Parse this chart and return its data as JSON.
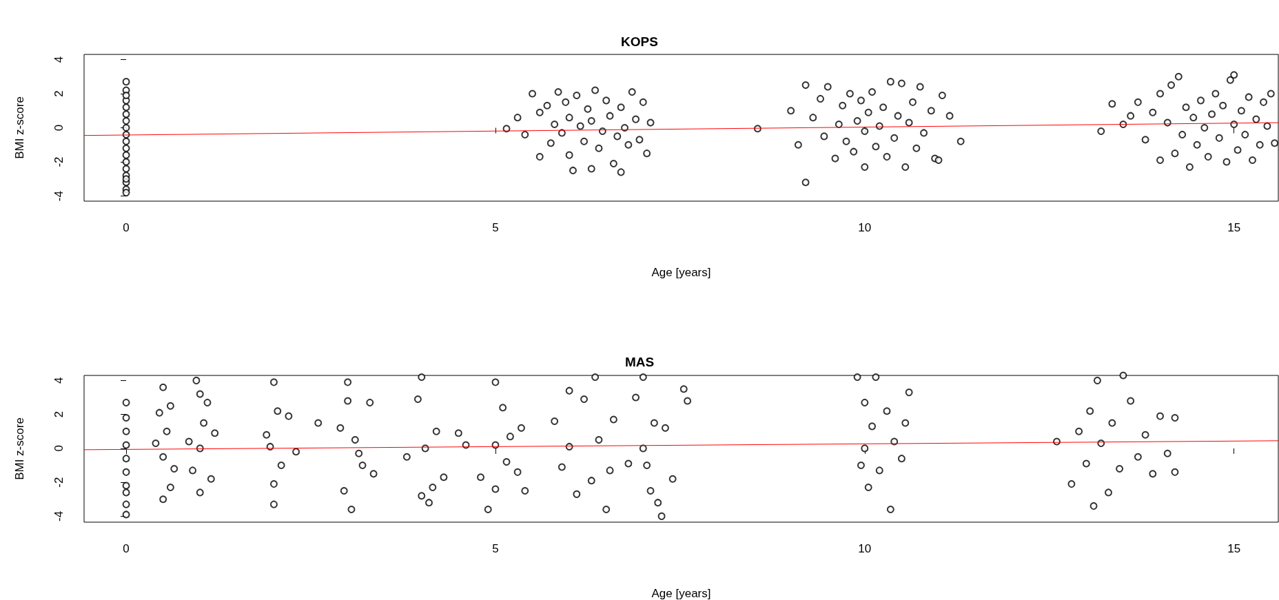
{
  "chart_data": [
    {
      "type": "scatter",
      "title": "KOPS",
      "xlabel": "Age [years]",
      "ylabel": "BMI z-score",
      "xlim": [
        -0.57,
        15.6
      ],
      "ylim": [
        -4.3,
        4.3
      ],
      "xticks": [
        0,
        5,
        10,
        15
      ],
      "yticks": [
        -4,
        -2,
        0,
        2,
        4
      ],
      "grid": false,
      "marker": "circle",
      "series": [
        {
          "type": "scatter",
          "color": "#000000",
          "x": [
            0,
            0,
            0,
            0,
            0,
            0,
            0,
            0,
            0,
            0,
            0,
            0,
            0,
            0,
            0,
            0,
            0,
            0,
            0,
            5.15,
            5.3,
            5.4,
            5.5,
            5.6,
            5.6,
            5.7,
            5.75,
            5.8,
            5.85,
            5.9,
            5.95,
            6.0,
            6.0,
            6.05,
            6.1,
            6.15,
            6.2,
            6.25,
            6.3,
            6.3,
            6.35,
            6.4,
            6.45,
            6.5,
            6.55,
            6.6,
            6.65,
            6.7,
            6.7,
            6.75,
            6.8,
            6.85,
            6.9,
            6.95,
            7.0,
            7.05,
            7.1,
            8.55,
            9.0,
            9.1,
            9.2,
            9.2,
            9.3,
            9.4,
            9.45,
            9.5,
            9.6,
            9.65,
            9.7,
            9.75,
            9.8,
            9.85,
            9.9,
            9.95,
            10.0,
            10.0,
            10.05,
            10.1,
            10.15,
            10.2,
            10.25,
            10.3,
            10.35,
            10.4,
            10.45,
            10.5,
            10.55,
            10.6,
            10.65,
            10.7,
            10.75,
            10.8,
            10.9,
            10.95,
            11.0,
            11.05,
            11.15,
            11.3,
            13.2,
            13.35,
            13.5,
            13.6,
            13.7,
            13.8,
            13.9,
            14.0,
            14.0,
            14.1,
            14.15,
            14.2,
            14.25,
            14.3,
            14.35,
            14.4,
            14.45,
            14.5,
            14.55,
            14.6,
            14.65,
            14.7,
            14.75,
            14.8,
            14.85,
            14.9,
            14.95,
            15.0,
            15.0,
            15.05,
            15.1,
            15.15,
            15.2,
            15.25,
            15.3,
            15.35,
            15.4,
            15.45,
            15.5,
            15.55
          ],
          "values": [
            2.7,
            2.2,
            1.6,
            1.2,
            0.8,
            0.4,
            0,
            -0.4,
            -0.8,
            -1.2,
            -1.6,
            -2,
            -2.4,
            -2.8,
            -3.2,
            -3.6,
            -3.8,
            1.9,
            -3.0,
            -0.05,
            0.6,
            -0.4,
            2.0,
            -1.7,
            0.9,
            1.3,
            -0.9,
            0.2,
            2.1,
            -0.3,
            1.5,
            -1.6,
            0.6,
            -2.5,
            1.9,
            0.1,
            -0.8,
            1.1,
            -2.4,
            0.4,
            2.2,
            -1.2,
            -0.2,
            1.6,
            0.7,
            -2.1,
            -0.5,
            -2.6,
            1.2,
            0.0,
            -1.0,
            2.1,
            0.5,
            -0.7,
            1.5,
            -1.5,
            0.3,
            -0.05,
            1.0,
            -1.0,
            2.5,
            -3.2,
            0.6,
            1.7,
            -0.5,
            2.4,
            -1.8,
            0.2,
            1.3,
            -0.8,
            2.0,
            -1.4,
            0.4,
            1.6,
            -2.3,
            -0.2,
            0.9,
            2.1,
            -1.1,
            0.1,
            1.2,
            -1.7,
            2.7,
            -0.6,
            0.7,
            2.6,
            -2.3,
            0.3,
            1.5,
            -1.2,
            2.4,
            -0.3,
            1.0,
            -1.8,
            -1.9,
            1.9,
            0.7,
            -0.8,
            -0.2,
            1.4,
            0.2,
            0.7,
            1.5,
            -0.7,
            0.9,
            2.0,
            -1.9,
            0.3,
            2.5,
            -1.5,
            3.0,
            -0.4,
            1.2,
            -2.3,
            0.6,
            -1.0,
            1.6,
            0.0,
            -1.7,
            0.8,
            2.0,
            -0.6,
            1.3,
            -2.0,
            2.8,
            3.1,
            0.2,
            -1.3,
            1.0,
            -0.4,
            1.8,
            -1.9,
            0.5,
            -1.0,
            1.5,
            0.1,
            2.0,
            -0.9
          ]
        },
        {
          "type": "line",
          "color": "#ff0000",
          "marker": "none",
          "x": [
            -0.57,
            15.6
          ],
          "values": [
            -0.45,
            0.3
          ]
        }
      ]
    },
    {
      "type": "scatter",
      "title": "MAS",
      "xlabel": "Age [years]",
      "ylabel": "BMI z-score",
      "xlim": [
        -0.57,
        15.6
      ],
      "ylim": [
        -4.35,
        4.3
      ],
      "xticks": [
        0,
        5,
        10,
        15
      ],
      "yticks": [
        -4,
        -2,
        0,
        2,
        4
      ],
      "grid": false,
      "marker": "circle",
      "series": [
        {
          "type": "scatter",
          "color": "#000000",
          "x": [
            0,
            0,
            0,
            0,
            0,
            0,
            0,
            0,
            0,
            0,
            0.45,
            0.5,
            0.5,
            0.55,
            0.5,
            0.6,
            0.4,
            0.6,
            0.65,
            0.95,
            1.0,
            1.05,
            1.0,
            0.9,
            1.1,
            1.2,
            0.85,
            1.0,
            1.15,
            1.9,
            2.0,
            2.0,
            2.05,
            2.1,
            1.95,
            2.2,
            2.3,
            2.6,
            2.0,
            3.0,
            3.05,
            3.0,
            2.95,
            3.1,
            3.2,
            3.3,
            3.35,
            2.9,
            3.15,
            4.0,
            4.0,
            3.95,
            4.1,
            3.8,
            4.2,
            4.3,
            4.5,
            4.6,
            4.05,
            4.15,
            5.0,
            4.9,
            5.0,
            5.1,
            4.8,
            5.2,
            5.3,
            5.35,
            5.4,
            5.0,
            5.15,
            6.0,
            6.1,
            5.8,
            6.2,
            6.3,
            6.35,
            6.4,
            6.5,
            6.55,
            6.6,
            6.0,
            5.9,
            6.8,
            6.9,
            7.0,
            7.1,
            7.2,
            7.25,
            7.3,
            7.4,
            7.55,
            7.6,
            7.0,
            7.05,
            7.15,
            9.9,
            10.0,
            10.05,
            10.1,
            10.15,
            10.2,
            10.3,
            10.35,
            10.4,
            10.5,
            10.55,
            10.6,
            10.0,
            9.95,
            12.6,
            12.8,
            12.9,
            13.0,
            13.05,
            13.1,
            13.15,
            13.2,
            13.3,
            13.35,
            13.45,
            13.5,
            13.6,
            13.7,
            13.8,
            13.9,
            14.0,
            14.1,
            14.2,
            14.2
          ],
          "values": [
            2.7,
            1.8,
            1.0,
            0.2,
            -0.6,
            -1.4,
            -2.2,
            -2.6,
            -3.3,
            -3.9,
            2.1,
            3.6,
            -3.0,
            1.0,
            -0.5,
            -2.3,
            0.3,
            2.5,
            -1.2,
            4.0,
            -2.6,
            1.5,
            0.0,
            -1.3,
            2.7,
            0.9,
            0.4,
            3.2,
            -1.8,
            0.8,
            3.9,
            -3.3,
            2.2,
            -1.0,
            0.1,
            1.9,
            -0.2,
            1.5,
            -2.1,
            3.9,
            -3.6,
            2.8,
            -2.5,
            0.5,
            -1.0,
            2.7,
            -1.5,
            1.2,
            -0.3,
            4.2,
            -2.8,
            2.9,
            -3.2,
            -0.5,
            1.0,
            -1.7,
            0.9,
            0.2,
            0.0,
            -2.3,
            3.9,
            -3.6,
            -2.4,
            2.4,
            -1.7,
            0.7,
            -1.4,
            1.2,
            -2.5,
            0.2,
            -0.8,
            3.4,
            -2.7,
            1.6,
            2.9,
            -1.9,
            4.2,
            0.5,
            -3.6,
            -1.3,
            1.7,
            0.1,
            -1.1,
            -0.9,
            3.0,
            4.2,
            -2.5,
            -3.2,
            -4.0,
            1.2,
            -1.8,
            3.5,
            2.8,
            0.0,
            -1.0,
            1.5,
            4.2,
            2.7,
            -2.3,
            1.3,
            4.2,
            -1.3,
            2.2,
            -3.6,
            0.4,
            -0.6,
            1.5,
            3.3,
            0.0,
            -1.0,
            0.4,
            -2.1,
            1.0,
            -0.9,
            2.2,
            -3.4,
            4.0,
            0.3,
            -2.6,
            1.5,
            -1.2,
            4.3,
            2.8,
            -0.5,
            0.8,
            -1.5,
            1.9,
            -0.3,
            1.8,
            -1.4
          ]
        },
        {
          "type": "line",
          "color": "#ff0000",
          "marker": "none",
          "x": [
            -0.57,
            15.6
          ],
          "values": [
            -0.08,
            0.45
          ]
        }
      ]
    }
  ]
}
